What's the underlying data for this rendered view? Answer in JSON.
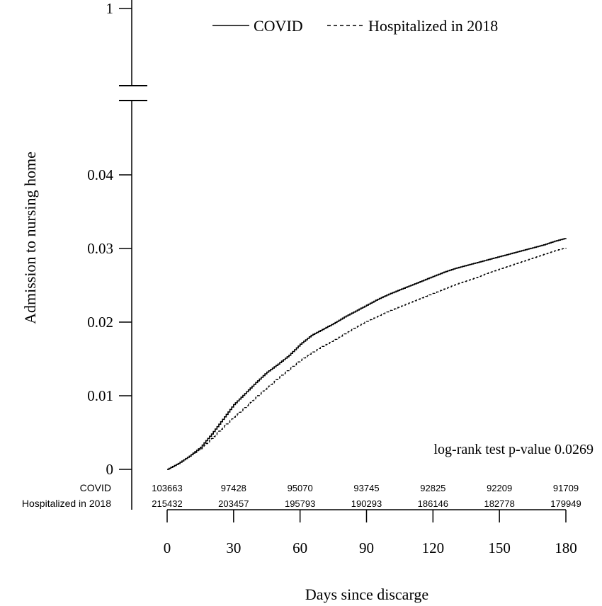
{
  "chart_data": {
    "type": "line",
    "title": "",
    "xlabel": "Days since discarge",
    "ylabel": "Admission to nursing home",
    "xlim": [
      0,
      180
    ],
    "ylim": [
      0,
      0.05
    ],
    "x_ticks": [
      0,
      30,
      60,
      90,
      120,
      150,
      180
    ],
    "x_tick_labels": [
      "0",
      "30",
      "60",
      "90",
      "120",
      "150",
      "180"
    ],
    "y_ticks": [
      0,
      0.01,
      0.02,
      0.03,
      0.04
    ],
    "y_tick_labels": [
      "0",
      "0.01",
      "0.02",
      "0.03",
      "0.04"
    ],
    "y_break_tick": {
      "value": 1,
      "label": "1"
    },
    "grid": false,
    "legend_position": "top",
    "annotation": "log-rank test p-value 0.0269",
    "series": [
      {
        "name": "COVID",
        "style": "solid",
        "x": [
          0,
          5,
          10,
          15,
          20,
          25,
          30,
          35,
          40,
          45,
          50,
          55,
          60,
          65,
          70,
          75,
          80,
          85,
          90,
          95,
          100,
          105,
          110,
          115,
          120,
          125,
          130,
          135,
          140,
          145,
          150,
          155,
          160,
          165,
          170,
          175,
          180
        ],
        "values": [
          0,
          0.0008,
          0.0018,
          0.003,
          0.0048,
          0.0068,
          0.0088,
          0.0103,
          0.0118,
          0.0132,
          0.0143,
          0.0155,
          0.017,
          0.0182,
          0.019,
          0.0198,
          0.0207,
          0.0215,
          0.0223,
          0.0231,
          0.0238,
          0.0244,
          0.025,
          0.0256,
          0.0262,
          0.0268,
          0.0273,
          0.0277,
          0.0281,
          0.0285,
          0.0289,
          0.0293,
          0.0297,
          0.0301,
          0.0305,
          0.031,
          0.0314
        ]
      },
      {
        "name": "Hospitalized in 2018",
        "style": "dashed",
        "x": [
          0,
          5,
          10,
          15,
          20,
          25,
          30,
          35,
          40,
          45,
          50,
          55,
          60,
          65,
          70,
          75,
          80,
          85,
          90,
          95,
          100,
          105,
          110,
          115,
          120,
          125,
          130,
          135,
          140,
          145,
          150,
          155,
          160,
          165,
          170,
          175,
          180
        ],
        "values": [
          0,
          0.0008,
          0.0018,
          0.0028,
          0.0042,
          0.0057,
          0.0071,
          0.0084,
          0.0098,
          0.0111,
          0.0124,
          0.0136,
          0.0148,
          0.0158,
          0.0167,
          0.0175,
          0.0184,
          0.0193,
          0.0201,
          0.0208,
          0.0215,
          0.0221,
          0.0227,
          0.0233,
          0.0239,
          0.0245,
          0.0251,
          0.0256,
          0.0261,
          0.0267,
          0.0272,
          0.0277,
          0.0282,
          0.0287,
          0.0292,
          0.0297,
          0.0301
        ]
      }
    ],
    "risk_table": {
      "rows": [
        {
          "label": "COVID",
          "counts": [
            "103663",
            "97428",
            "95070",
            "93745",
            "92825",
            "92209",
            "91709"
          ]
        },
        {
          "label": "Hospitalized in 2018",
          "counts": [
            "215432",
            "203457",
            "195793",
            "190293",
            "186146",
            "182778",
            "179949"
          ]
        }
      ]
    }
  }
}
